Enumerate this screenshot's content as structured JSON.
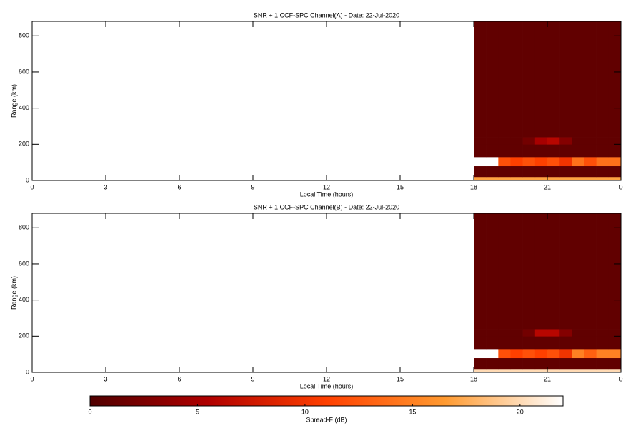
{
  "chart_data": [
    {
      "type": "heatmap",
      "title": "SNR + 1 CCF-SPC Channel(A) - Date: 22-Jul-2020",
      "xlabel": "Local Time (hours)",
      "ylabel": "Range (km)",
      "xlim": [
        0,
        24
      ],
      "xticks": [
        0,
        3,
        6,
        9,
        12,
        15,
        18,
        21,
        {
          "value": 24,
          "label": "0"
        }
      ],
      "ylim": [
        0,
        880
      ],
      "yticks": [
        0,
        200,
        400,
        600,
        800
      ],
      "xbins": [
        18,
        18.5,
        19,
        19.5,
        20,
        20.5,
        21,
        21.5,
        22,
        22.5,
        23,
        23.5,
        24
      ],
      "ybins": [
        0,
        20,
        80,
        130,
        200,
        240,
        880
      ],
      "values": [
        [
          17,
          17,
          17,
          17,
          17,
          17,
          17,
          17,
          17,
          17,
          17,
          17
        ],
        [
          1,
          1,
          1,
          1,
          1,
          1,
          1,
          1,
          1,
          1,
          1,
          1
        ],
        [
          22,
          22,
          12,
          11,
          12,
          11,
          12,
          10,
          14,
          12,
          14,
          14
        ],
        [
          1,
          1,
          1,
          1,
          1,
          1,
          1,
          1,
          1,
          1,
          1,
          1
        ],
        [
          1,
          1,
          1,
          1,
          2,
          5,
          6,
          3,
          1,
          1,
          1,
          1
        ],
        [
          1,
          1,
          1,
          1,
          1,
          1,
          1,
          1,
          1,
          1,
          1,
          1
        ]
      ]
    },
    {
      "type": "heatmap",
      "title": "SNR + 1 CCF-SPC Channel(B) - Date: 22-Jul-2020",
      "xlabel": "Local Time (hours)",
      "ylabel": "Range (km)",
      "xlim": [
        0,
        24
      ],
      "xticks": [
        0,
        3,
        6,
        9,
        12,
        15,
        18,
        21,
        {
          "value": 24,
          "label": "0"
        }
      ],
      "ylim": [
        0,
        880
      ],
      "yticks": [
        0,
        200,
        400,
        600,
        800
      ],
      "xbins": [
        18,
        18.5,
        19,
        19.5,
        20,
        20.5,
        21,
        21.5,
        22,
        22.5,
        23,
        23.5,
        24
      ],
      "ybins": [
        0,
        20,
        80,
        130,
        200,
        240,
        880
      ],
      "values": [
        [
          20,
          20,
          20,
          20,
          20,
          20,
          20,
          20,
          20,
          20,
          20,
          20
        ],
        [
          1,
          1,
          1,
          1,
          1,
          1,
          1,
          1,
          1,
          1,
          1,
          1
        ],
        [
          22,
          22,
          12,
          11,
          12,
          11,
          12,
          10,
          15,
          13,
          15,
          15
        ],
        [
          1,
          1,
          1,
          1,
          1,
          1,
          1,
          1,
          1,
          1,
          1,
          1
        ],
        [
          1,
          1,
          1,
          1,
          2,
          6,
          6,
          3,
          1,
          1,
          1,
          1
        ],
        [
          1,
          1,
          1,
          1,
          1,
          1,
          1,
          1,
          1,
          1,
          1,
          1
        ]
      ]
    },
    {
      "type": "colorbar",
      "xlabel": "Spread-F (dB)",
      "xlim": [
        0,
        22
      ],
      "xticks": [
        0,
        5,
        10,
        15,
        20
      ],
      "colors": [
        "#500000",
        "#b00000",
        "#ff4000",
        "#ff9a30",
        "#ffffff"
      ]
    }
  ]
}
